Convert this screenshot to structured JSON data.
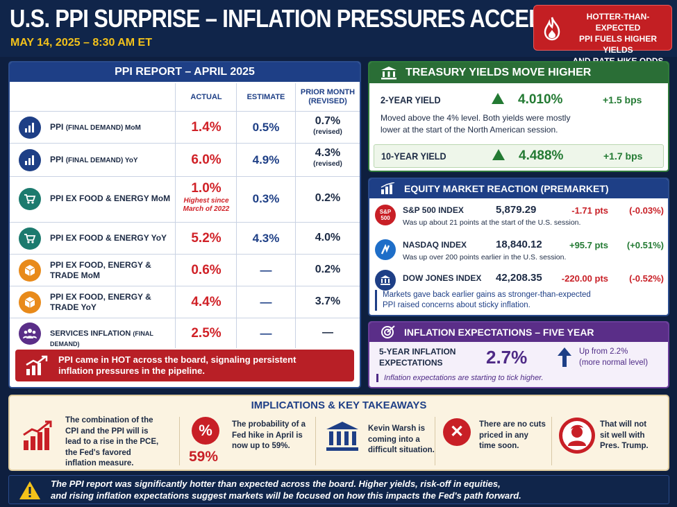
{
  "header": {
    "title": "U.S. PPI SURPRISE – INFLATION PRESSURES ACCELERATE",
    "date": "MAY 14, 2025 – 8:30 AM ET",
    "badge": "HOTTER-THAN-EXPECTED\nPPI FUELS HIGHER YIELDS\nAND RATE HIKE ODDS",
    "badge_icon": "flame-icon"
  },
  "ppi": {
    "title": "PPI REPORT – APRIL 2025",
    "col_actual": "ACTUAL",
    "col_estimate": "ESTIMATE",
    "col_prior": "PRIOR MONTH (REVISED)",
    "rows": [
      {
        "label": "PPI",
        "label_small": "(FINAL DEMAND) MoM",
        "actual": "1.4%",
        "estimate": "0.5%",
        "prior": "0.7%",
        "prior_note": "(revised)",
        "icon": "bar-chart-icon"
      },
      {
        "label": "PPI",
        "label_small": "(FINAL DEMAND) YoY",
        "actual": "6.0%",
        "estimate": "4.9%",
        "prior": "4.3%",
        "prior_note": "(revised)",
        "icon": "bar-chart-icon"
      },
      {
        "label": "PPI EX FOOD & ENERGY MoM",
        "actual": "1.0%",
        "actual_note": "Highest since March of 2022",
        "estimate": "0.3%",
        "prior": "0.2%",
        "icon": "cart-icon"
      },
      {
        "label": "PPI EX FOOD & ENERGY YoY",
        "actual": "5.2%",
        "estimate": "4.3%",
        "prior": "4.0%",
        "icon": "cart-icon"
      },
      {
        "label": "PPI EX FOOD, ENERGY & TRADE MoM",
        "actual": "0.6%",
        "estimate": "—",
        "prior": "0.2%",
        "icon": "box-icon"
      },
      {
        "label": "PPI EX FOOD, ENERGY & TRADE YoY",
        "actual": "4.4%",
        "estimate": "—",
        "prior": "3.7%",
        "icon": "box-icon"
      },
      {
        "label": "SERVICES INFLATION",
        "label_small": "(FINAL DEMAND)",
        "actual": "2.5%",
        "estimate": "—",
        "prior": "—",
        "icon": "people-icon"
      }
    ],
    "callout": "PPI came in HOT across the board, signaling persistent\ninflation pressures in the pipeline."
  },
  "yields": {
    "title": "TREASURY YIELDS MOVE HIGHER",
    "two_year_label": "2-YEAR YIELD",
    "two_year_value": "4.010%",
    "two_year_change": "+1.5 bps",
    "note": "Moved above the 4% level. Both yields were mostly\nlower at the start of the North American session.",
    "ten_year_label": "10-YEAR YIELD",
    "ten_year_value": "4.488%",
    "ten_year_change": "+1.7 bps"
  },
  "equity": {
    "title": "EQUITY MARKET REACTION (PREMARKET)",
    "rows": [
      {
        "name": "S&P 500 INDEX",
        "value": "5,879.29",
        "pts": "-1.71 pts",
        "pct": "(-0.03%)",
        "note": "Was up about 21 points at the start of the U.S. session.",
        "icon_text": "S&P 500"
      },
      {
        "name": "NASDAQ INDEX",
        "value": "18,840.12",
        "pts": "+95.7 pts",
        "pct": "(+0.51%)",
        "note": "Was up over 200 points earlier in the U.S. session."
      },
      {
        "name": "DOW JONES INDEX",
        "value": "42,208.35",
        "pts": "-220.00 pts",
        "pct": "(-0.52%)",
        "note": ""
      }
    ],
    "footer": "Markets gave back earlier gains as stronger-than-expected\nPPI raised concerns about sticky inflation."
  },
  "inflation_expectations": {
    "title": "INFLATION EXPECTATIONS – FIVE YEAR",
    "label": "5-YEAR INFLATION\nEXPECTATIONS",
    "value": "2.7%",
    "change": "Up from 2.2%\n(more normal level)",
    "note": "Inflation expectations are starting to tick higher."
  },
  "implications": {
    "title": "IMPLICATIONS & KEY TAKEAWAYS",
    "items": [
      {
        "text": "The combination of the\nCPI and the PPI will is\nlead to a rise in the PCE,\nthe Fed's favored\ninflation measure.",
        "icon": "rising-chart-icon"
      },
      {
        "text": "The probability of a\nFed hike in April is\nnow up to 59%.",
        "value": "59%",
        "icon": "percent-icon"
      },
      {
        "text": "Kevin Warsh is\ncoming into a\ndifficult situation.",
        "icon": "bank-icon"
      },
      {
        "text": "There are no cuts\npriced in any\ntime soon.",
        "icon": "x-circle-icon"
      },
      {
        "text": "That will not\nsit well with\nPres. Trump.",
        "icon": "portrait-icon"
      }
    ]
  },
  "footer": {
    "text": "The PPI report was significantly hotter than expected across the board. Higher yields, risk-off in equities,\nand rising inflation expectations suggest markets will be focused on how this impacts the Fed's path forward.",
    "icon": "warning-icon"
  }
}
